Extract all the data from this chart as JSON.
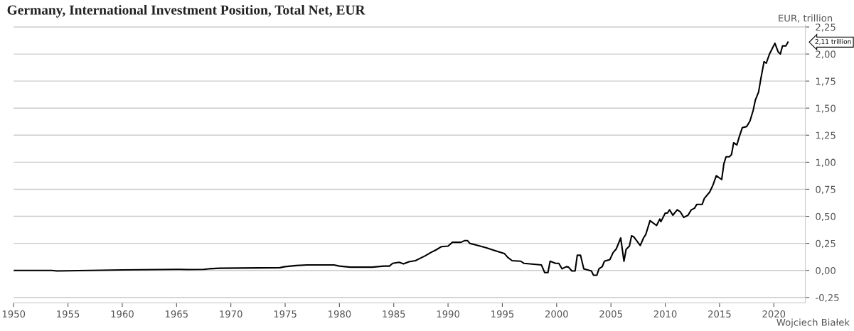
{
  "chart_data": {
    "type": "line",
    "title": "Germany, International Investment Position, Total Net, EUR",
    "ylabel": "EUR, trillion",
    "annotations": [
      "2,11 trillion",
      "Wojciech Białek"
    ],
    "series": [
      {
        "color": "#000000",
        "x": [
          1950,
          1953.5,
          1954,
          1957,
          1960,
          1965,
          1966,
          1967.5,
          1968,
          1969,
          1974.5,
          1975,
          1976,
          1977,
          1979.5,
          1980,
          1981,
          1983,
          1984.1,
          1984.6,
          1984.9,
          1985.5,
          1985.9,
          1986.4,
          1987.0,
          1987.4,
          1987.9,
          1988.4,
          1988.9,
          1989.4,
          1990.0,
          1990.4,
          1991.2,
          1991.5,
          1991.8,
          1992.0,
          1992.6,
          1993.5,
          1994.4,
          1995.2,
          1995.5,
          1995.9,
          1996.7,
          1997.0,
          1998.6,
          1998.9,
          1999.2,
          1999.4,
          1999.9,
          2000.2,
          2000.5,
          2000.9,
          2001.1,
          2001.4,
          2001.7,
          2001.9,
          2002.2,
          2002.5,
          2003.2,
          2003.4,
          2003.7,
          2003.9,
          2004.2,
          2004.4,
          2004.9,
          2005.2,
          2005.5,
          2005.9,
          2006.2,
          2006.4,
          2006.7,
          2006.9,
          2007.1,
          2007.7,
          2008.0,
          2008.2,
          2008.6,
          2009.2,
          2009.5,
          2009.6,
          2010.0,
          2010.2,
          2010.4,
          2010.7,
          2011.1,
          2011.4,
          2011.7,
          2012.1,
          2012.4,
          2012.7,
          2012.9,
          2013.4,
          2013.6,
          2014.1,
          2014.4,
          2014.7,
          2015.2,
          2015.4,
          2015.6,
          2015.9,
          2016.1,
          2016.3,
          2016.6,
          2016.8,
          2017.1,
          2017.5,
          2017.8,
          2018.1,
          2018.3,
          2018.6,
          2018.8,
          2019.1,
          2019.3,
          2019.6,
          2019.8,
          2020.1,
          2020.4,
          2020.6,
          2020.8,
          2021.1,
          2021.3
        ],
        "values": [
          0.0,
          0.0,
          -0.005,
          0.0,
          0.005,
          0.01,
          0.008,
          0.01,
          0.015,
          0.02,
          0.025,
          0.035,
          0.045,
          0.05,
          0.05,
          0.04,
          0.03,
          0.03,
          0.04,
          0.04,
          0.065,
          0.075,
          0.06,
          0.08,
          0.09,
          0.11,
          0.135,
          0.165,
          0.19,
          0.22,
          0.225,
          0.26,
          0.26,
          0.275,
          0.275,
          0.25,
          0.235,
          0.21,
          0.18,
          0.155,
          0.12,
          0.09,
          0.085,
          0.065,
          0.05,
          -0.02,
          -0.02,
          0.085,
          0.065,
          0.065,
          0.015,
          0.035,
          0.03,
          -0.005,
          -0.005,
          0.14,
          0.14,
          0.015,
          -0.005,
          -0.045,
          -0.045,
          0.015,
          0.035,
          0.085,
          0.1,
          0.165,
          0.2,
          0.3,
          0.085,
          0.195,
          0.225,
          0.32,
          0.31,
          0.23,
          0.3,
          0.33,
          0.46,
          0.415,
          0.475,
          0.45,
          0.53,
          0.53,
          0.56,
          0.51,
          0.56,
          0.54,
          0.49,
          0.51,
          0.56,
          0.575,
          0.61,
          0.61,
          0.665,
          0.725,
          0.79,
          0.875,
          0.84,
          0.985,
          1.05,
          1.05,
          1.07,
          1.18,
          1.16,
          1.23,
          1.32,
          1.33,
          1.38,
          1.48,
          1.575,
          1.65,
          1.77,
          1.93,
          1.915,
          2.0,
          2.04,
          2.1,
          2.02,
          2.0,
          2.075,
          2.075,
          2.11
        ]
      }
    ],
    "xlim": [
      1950,
      2022.9
    ],
    "ylim": [
      -0.3,
      2.27
    ],
    "xticks": [
      1950,
      1955,
      1960,
      1965,
      1970,
      1975,
      1980,
      1985,
      1990,
      1995,
      2000,
      2005,
      2010,
      2015,
      2020
    ],
    "yticks": [
      {
        "value": -0.25,
        "label": "-0,25"
      },
      {
        "value": 0,
        "label": "0,00"
      },
      {
        "value": 0.25,
        "label": "0,25"
      },
      {
        "value": 0.5,
        "label": "0,50"
      },
      {
        "value": 0.75,
        "label": "0,75"
      },
      {
        "value": 1,
        "label": "1,00"
      },
      {
        "value": 1.25,
        "label": "1,25"
      },
      {
        "value": 1.5,
        "label": "1,50"
      },
      {
        "value": 1.75,
        "label": "1,75"
      },
      {
        "value": 2,
        "label": "2,00"
      },
      {
        "value": 2.25,
        "label": "2,25"
      }
    ],
    "grid": "y"
  }
}
